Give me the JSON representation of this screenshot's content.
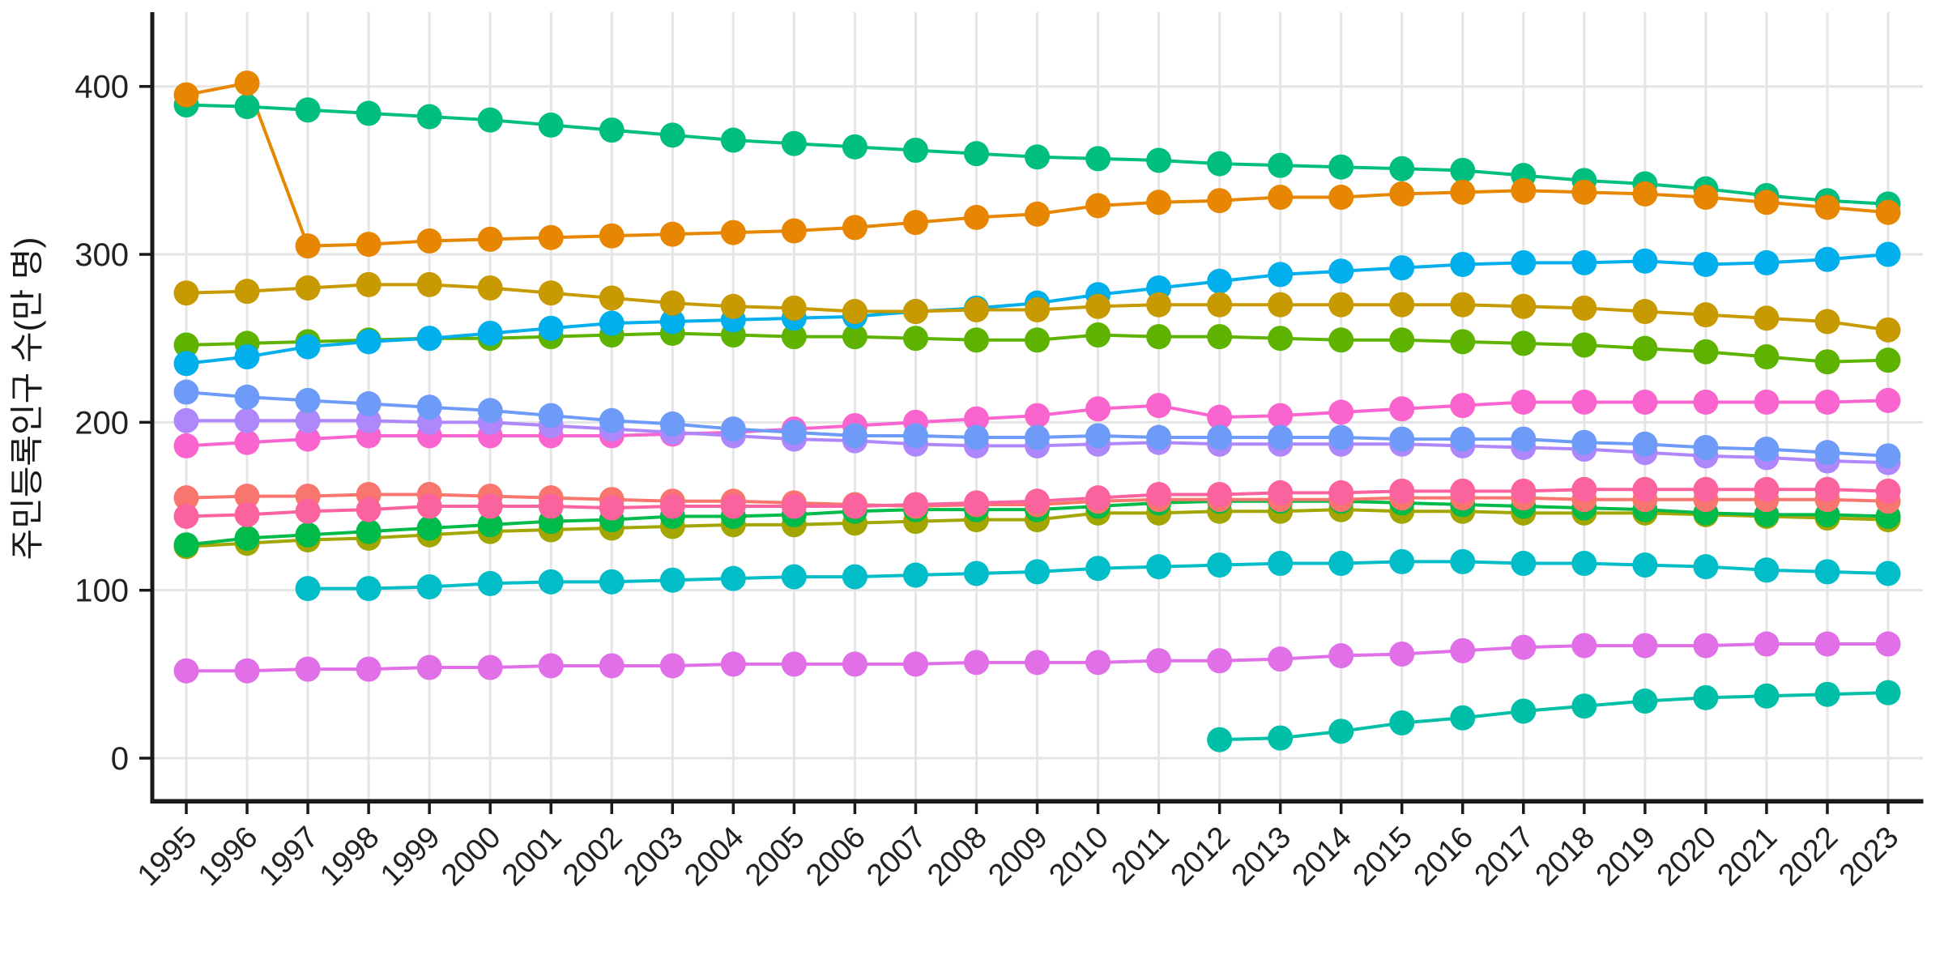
{
  "page": {
    "background": "#FFFFFF"
  },
  "axes": {
    "axis_color": "#1A1A1A",
    "tick_label_color": "#222222",
    "grid_color": "#E5E5E5"
  },
  "chart_data": {
    "type": "line",
    "title": "",
    "xlabel": "",
    "ylabel": "주민등록인구 수(만 명)",
    "x": [
      1995,
      1996,
      1997,
      1998,
      1999,
      2000,
      2001,
      2002,
      2003,
      2004,
      2005,
      2006,
      2007,
      2008,
      2009,
      2010,
      2011,
      2012,
      2013,
      2014,
      2015,
      2016,
      2017,
      2018,
      2019,
      2020,
      2021,
      2022,
      2023
    ],
    "ylim": [
      0,
      440
    ],
    "y_ticks": [
      0,
      100,
      200,
      300,
      400
    ],
    "grid": "on",
    "legend": "none",
    "marker": "filled-circle",
    "series": [
      {
        "name": "series-1",
        "color": "#00BF7D",
        "values": [
          389,
          388,
          386,
          384,
          382,
          380,
          377,
          374,
          371,
          368,
          366,
          364,
          362,
          360,
          358,
          357,
          356,
          354,
          353,
          352,
          351,
          350,
          347,
          344,
          342,
          339,
          335,
          332,
          330
        ]
      },
      {
        "name": "series-2",
        "color": "#5EB300",
        "values": [
          246,
          247,
          248,
          249,
          250,
          250,
          251,
          252,
          253,
          252,
          251,
          251,
          250,
          249,
          249,
          252,
          251,
          251,
          250,
          249,
          249,
          248,
          247,
          246,
          244,
          242,
          239,
          236,
          237
        ]
      },
      {
        "name": "series-3",
        "color": "#00AFEC",
        "values": [
          235,
          239,
          245,
          248,
          250,
          253,
          256,
          259,
          260,
          261,
          262,
          263,
          266,
          268,
          271,
          276,
          280,
          284,
          288,
          290,
          292,
          294,
          295,
          295,
          296,
          294,
          295,
          297,
          300
        ]
      },
      {
        "name": "series-4",
        "color": "#A3A500",
        "values": [
          126,
          128,
          130,
          131,
          133,
          135,
          136,
          137,
          138,
          139,
          139,
          140,
          141,
          142,
          142,
          146,
          146,
          147,
          147,
          148,
          147,
          147,
          146,
          146,
          146,
          145,
          144,
          143,
          142
        ]
      },
      {
        "name": "series-5",
        "color": "#00BA49",
        "values": [
          127,
          131,
          133,
          135,
          137,
          139,
          141,
          142,
          144,
          144,
          145,
          147,
          148,
          148,
          148,
          150,
          152,
          153,
          153,
          153,
          152,
          151,
          150,
          149,
          148,
          146,
          145,
          145,
          144
        ]
      },
      {
        "name": "series-6",
        "color": "#00BDC8",
        "values": [
          null,
          null,
          101,
          101,
          102,
          104,
          105,
          105,
          106,
          107,
          108,
          108,
          109,
          110,
          111,
          113,
          114,
          115,
          116,
          116,
          117,
          117,
          116,
          116,
          115,
          114,
          112,
          111,
          110
        ]
      },
      {
        "name": "series-7",
        "color": "#00BFA8",
        "values": [
          null,
          null,
          null,
          null,
          null,
          null,
          null,
          null,
          null,
          null,
          null,
          null,
          null,
          null,
          null,
          null,
          null,
          11,
          12,
          16,
          21,
          24,
          28,
          31,
          34,
          36,
          37,
          38,
          39
        ]
      },
      {
        "name": "series-8",
        "color": "#F8766D",
        "values": [
          155,
          156,
          156,
          157,
          157,
          156,
          155,
          154,
          153,
          153,
          152,
          151,
          150,
          151,
          151,
          153,
          154,
          154,
          154,
          154,
          155,
          155,
          155,
          154,
          154,
          154,
          154,
          154,
          153
        ]
      },
      {
        "name": "series-9",
        "color": "#FB639E",
        "values": [
          144,
          145,
          147,
          148,
          150,
          150,
          150,
          149,
          150,
          150,
          150,
          150,
          151,
          152,
          153,
          155,
          157,
          157,
          158,
          158,
          159,
          159,
          159,
          160,
          160,
          160,
          160,
          160,
          159
        ]
      },
      {
        "name": "series-10",
        "color": "#F964CE",
        "values": [
          186,
          188,
          190,
          192,
          192,
          192,
          192,
          192,
          193,
          194,
          196,
          198,
          200,
          202,
          204,
          208,
          210,
          203,
          204,
          206,
          208,
          210,
          212,
          212,
          212,
          212,
          212,
          212,
          213
        ]
      },
      {
        "name": "series-11",
        "color": "#AE87FA",
        "values": [
          201,
          201,
          201,
          201,
          200,
          200,
          198,
          196,
          194,
          192,
          190,
          189,
          187,
          186,
          186,
          187,
          188,
          187,
          187,
          187,
          187,
          186,
          185,
          184,
          182,
          180,
          179,
          177,
          176
        ]
      },
      {
        "name": "series-12",
        "color": "#6E9BF8",
        "values": [
          218,
          215,
          213,
          211,
          209,
          207,
          204,
          201,
          199,
          196,
          194,
          192,
          192,
          191,
          191,
          192,
          191,
          191,
          191,
          191,
          190,
          190,
          190,
          188,
          187,
          185,
          184,
          182,
          180
        ]
      },
      {
        "name": "series-13",
        "color": "#C69A00",
        "values": [
          277,
          278,
          280,
          282,
          282,
          280,
          277,
          274,
          271,
          269,
          268,
          266,
          266,
          267,
          267,
          269,
          270,
          270,
          270,
          270,
          270,
          270,
          269,
          268,
          266,
          264,
          262,
          260,
          255
        ]
      },
      {
        "name": "series-14",
        "color": "#E78600",
        "values": [
          395,
          402,
          305,
          306,
          308,
          309,
          310,
          311,
          312,
          313,
          314,
          316,
          319,
          322,
          324,
          329,
          331,
          332,
          334,
          334,
          336,
          337,
          338,
          337,
          336,
          334,
          331,
          328,
          325
        ]
      },
      {
        "name": "series-15",
        "color": "#E06FE8",
        "values": [
          52,
          52,
          53,
          53,
          54,
          54,
          55,
          55,
          55,
          56,
          56,
          56,
          56,
          57,
          57,
          57,
          58,
          58,
          59,
          61,
          62,
          64,
          66,
          67,
          67,
          67,
          68,
          68,
          68
        ]
      }
    ]
  }
}
